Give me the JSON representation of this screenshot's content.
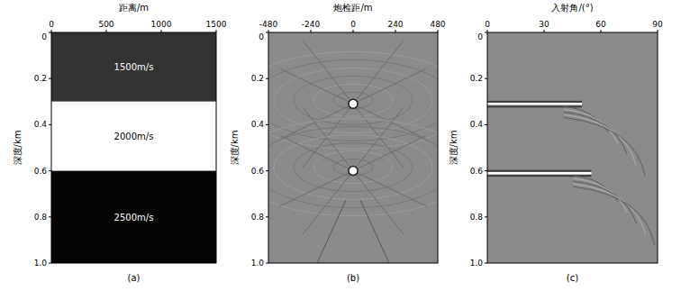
{
  "chart_data": [
    {
      "type": "velocity_model",
      "caption": "(a)",
      "x_label": "距离/m",
      "y_label": "深度/km",
      "xlim": [
        0,
        1500
      ],
      "xticks": [
        0,
        500,
        1000,
        1500
      ],
      "ylim": [
        0,
        1
      ],
      "yticks": [
        0,
        0.2,
        0.4,
        0.6,
        0.8,
        {
          "value": 1,
          "label": "1.0"
        }
      ],
      "layers": [
        {
          "top": 0,
          "bottom": 0.3,
          "velocity": 1500,
          "label": "1500m/s",
          "color": "#333333"
        },
        {
          "top": 0.3,
          "bottom": 0.6,
          "velocity": 2000,
          "label": "2000m/s",
          "color": "#ffffff"
        },
        {
          "top": 0.6,
          "bottom": 1,
          "velocity": 2500,
          "label": "2500m/s",
          "color": "#050505"
        }
      ]
    },
    {
      "type": "offset_gather",
      "caption": "(b)",
      "x_label": "炮检距/m",
      "y_label": "深度/km",
      "xlim": [
        -480,
        480
      ],
      "xticks": [
        -480,
        -240,
        0,
        240,
        480
      ],
      "ylim": [
        0,
        1
      ],
      "yticks": [
        0,
        0.2,
        0.4,
        0.6,
        0.8,
        {
          "value": 1,
          "label": "1.0"
        }
      ],
      "color": "#8a8a8a",
      "events": [
        {
          "x": 0,
          "y": 0.31
        },
        {
          "x": 0,
          "y": 0.6
        }
      ]
    },
    {
      "type": "angle_gather",
      "caption": "(c)",
      "x_label": "入射角/(°)",
      "y_label": "深度/km",
      "xlim": [
        0,
        90
      ],
      "xticks": [
        0,
        30,
        60,
        90
      ],
      "ylim": [
        0,
        1
      ],
      "yticks": [
        0,
        0.2,
        0.4,
        0.6,
        0.8,
        {
          "value": 1,
          "label": "1.0"
        }
      ],
      "color": "#8a8a8a",
      "reflectors": [
        {
          "depth": 0.31,
          "angle_min": 0,
          "angle_max": 50
        },
        {
          "depth": 0.61,
          "angle_min": 0,
          "angle_max": 55
        }
      ]
    }
  ]
}
